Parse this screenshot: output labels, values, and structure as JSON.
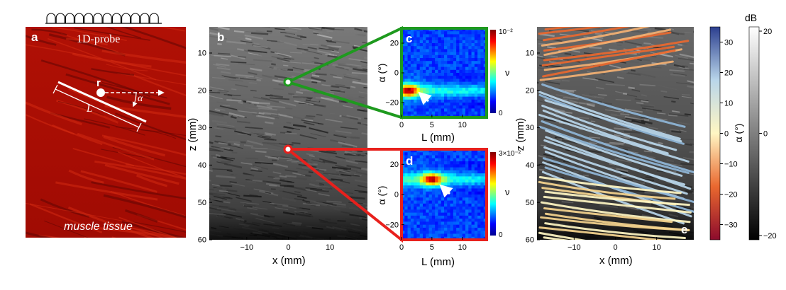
{
  "panel_a": {
    "letter": "a",
    "probe_label": "1D-probe",
    "point_label": "r",
    "angle_label": "α",
    "length_label": "L",
    "tissue_label": "muscle tissue",
    "probe_elements": 12
  },
  "panel_b": {
    "letter": "b",
    "x_axis": {
      "label": "x (mm)",
      "ticks": [
        "−10",
        "0",
        "10"
      ],
      "range": [
        -19,
        19
      ]
    },
    "z_axis": {
      "label": "z (mm)",
      "ticks": [
        "10",
        "20",
        "30",
        "40",
        "50",
        "60"
      ],
      "range": [
        3,
        60
      ]
    },
    "markers": [
      {
        "name": "upper point",
        "x_mm": 0,
        "z_mm": 17.5,
        "links_to": "c",
        "color": "#1e9a1e"
      },
      {
        "name": "lower point",
        "x_mm": 0,
        "z_mm": 35.3,
        "links_to": "d",
        "color": "#e8201c"
      }
    ]
  },
  "panel_c": {
    "letter": "c",
    "y_label": "α (°)",
    "x_label": "L (mm)",
    "y_ticks": [
      "20",
      "0",
      "−20"
    ],
    "x_ticks": [
      "0",
      "5",
      "10"
    ],
    "y_range": [
      -30,
      30
    ],
    "x_range": [
      0,
      14
    ],
    "colorbar_max": "10⁻²",
    "colorbar_min": "0",
    "colorbar_label": "ν",
    "frame_color": "#1e9a1e",
    "peak_alpha_deg": -12
  },
  "panel_d": {
    "letter": "d",
    "y_label": "α (°)",
    "x_label": "L (mm)",
    "y_ticks": [
      "20",
      "0",
      "−20"
    ],
    "x_ticks": [
      "0",
      "5",
      "10"
    ],
    "y_range": [
      -30,
      30
    ],
    "x_range": [
      0,
      14
    ],
    "colorbar_max": "3×10⁻²",
    "colorbar_min": "0",
    "colorbar_label": "ν",
    "frame_color": "#e8201c",
    "peak_alpha_deg": 10
  },
  "panel_e": {
    "letter": "e",
    "x_axis": {
      "label": "x (mm)",
      "ticks": [
        "−10",
        "0",
        "10"
      ]
    },
    "z_axis": {
      "label": "z (mm)",
      "ticks": [
        "10",
        "20",
        "30",
        "40",
        "50",
        "60"
      ]
    },
    "alpha_colorbar": {
      "label": "α (°)",
      "ticks": [
        "30",
        "20",
        "10",
        "0",
        "−10",
        "−20",
        "−30"
      ],
      "colors": [
        "#2c3f8f",
        "#b9d6ea",
        "#fff6c3",
        "#e9682f",
        "#8c0b2c"
      ]
    },
    "db_colorbar": {
      "label": "dB",
      "ticks": [
        "20",
        "0",
        "−20"
      ]
    }
  }
}
